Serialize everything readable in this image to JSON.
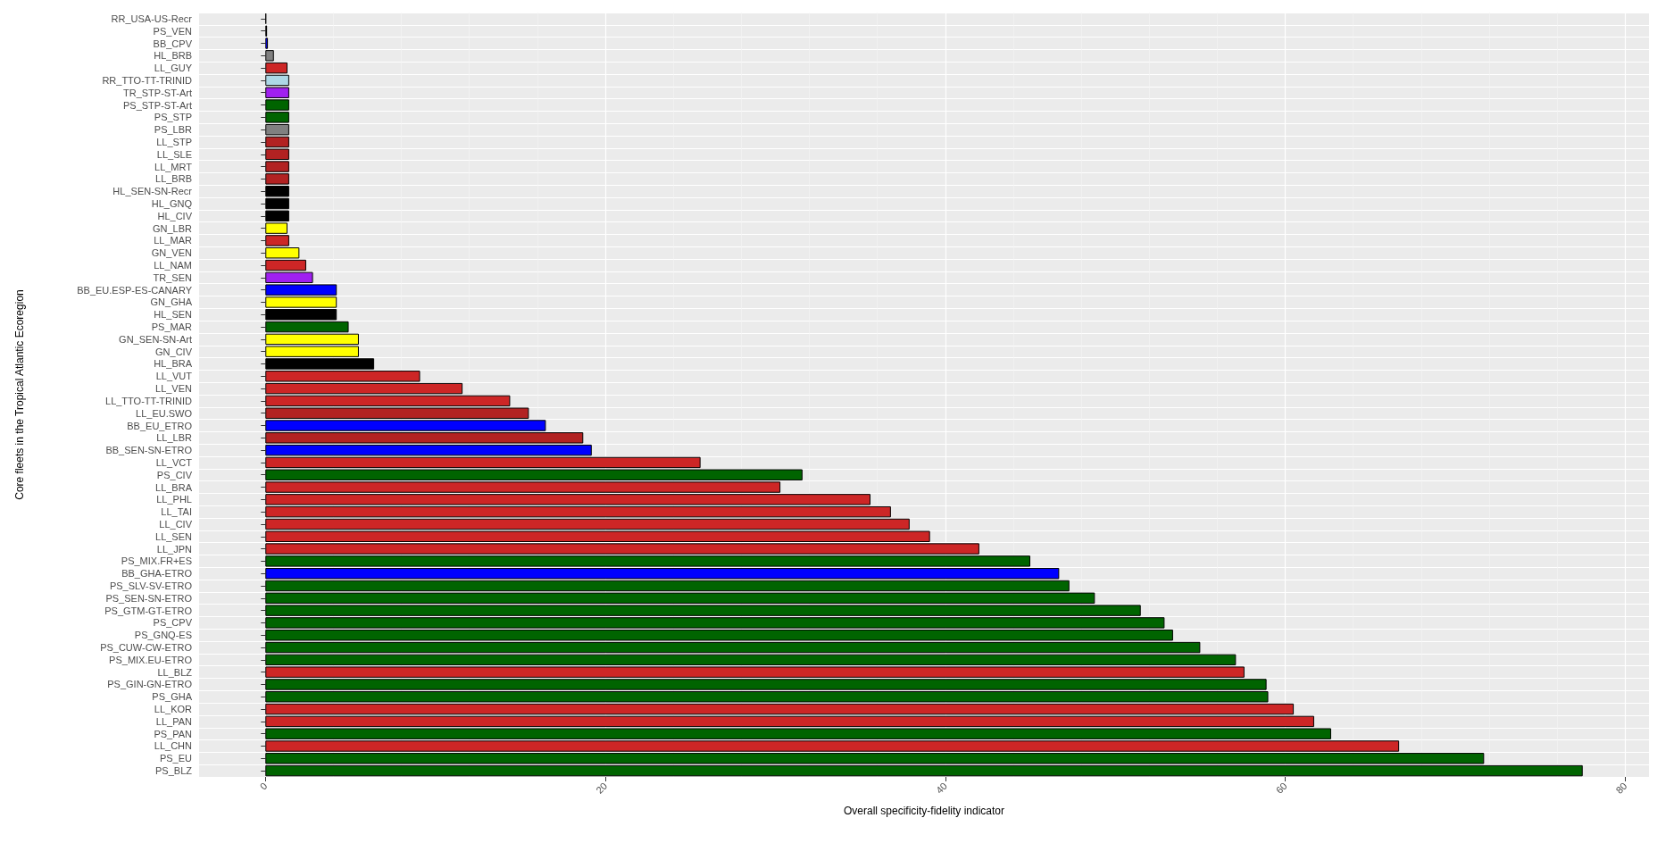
{
  "chart_data": {
    "type": "bar",
    "orientation": "horizontal",
    "xlabel": "Overall specificity-fidelity indicator",
    "ylabel": "Core fleets in the Tropical Atlantic Ecoregion",
    "categories": [
      "RR_USA-US-Recr",
      "PS_VEN",
      "BB_CPV",
      "HL_BRB",
      "LL_GUY",
      "RR_TTO-TT-TRINID",
      "TR_STP-ST-Art",
      "PS_STP-ST-Art",
      "PS_STP",
      "PS_LBR",
      "LL_STP",
      "LL_SLE",
      "LL_MRT",
      "LL_BRB",
      "HL_SEN-SN-Recr",
      "HL_GNQ",
      "HL_CIV",
      "GN_LBR",
      "LL_MAR",
      "GN_VEN",
      "LL_NAM",
      "TR_SEN",
      "BB_EU.ESP-ES-CANARY",
      "GN_GHA",
      "HL_SEN",
      "PS_MAR",
      "GN_SEN-SN-Art",
      "GN_CIV",
      "HL_BRA",
      "LL_VUT",
      "LL_VEN",
      "LL_TTO-TT-TRINID",
      "LL_EU.SWO",
      "BB_EU_ETRO",
      "LL_LBR",
      "BB_SEN-SN-ETRO",
      "LL_VCT",
      "PS_CIV",
      "LL_BRA",
      "LL_PHL",
      "LL_TAI",
      "LL_CIV",
      "LL_SEN",
      "LL_JPN",
      "PS_MIX.FR+ES",
      "BB_GHA-ETRO",
      "PS_SLV-SV-ETRO",
      "PS_SEN-SN-ETRO",
      "PS_GTM-GT-ETRO",
      "PS_CPV",
      "PS_GNQ-ES",
      "PS_CUW-CW-ETRO",
      "PS_MIX.EU-ETRO",
      "LL_BLZ",
      "PS_GIN-GN-ETRO",
      "PS_GHA",
      "LL_KOR",
      "LL_PAN",
      "PS_PAN",
      "LL_CHN",
      "PS_EU",
      "PS_BLZ"
    ],
    "values": [
      0.05,
      0.1,
      0.15,
      0.5,
      1.3,
      1.4,
      1.4,
      1.4,
      1.4,
      1.4,
      1.4,
      1.4,
      1.4,
      1.4,
      1.4,
      1.4,
      1.4,
      1.3,
      1.4,
      2.0,
      2.4,
      2.8,
      4.2,
      4.2,
      4.2,
      4.9,
      5.5,
      5.5,
      6.4,
      9.1,
      11.6,
      14.4,
      15.5,
      16.5,
      18.7,
      19.2,
      25.6,
      31.6,
      30.3,
      35.6,
      36.8,
      37.9,
      39.1,
      42.0,
      45.0,
      46.7,
      47.3,
      48.8,
      51.5,
      52.9,
      53.4,
      55.0,
      57.1,
      57.6,
      58.9,
      59.0,
      60.5,
      61.7,
      62.7,
      66.7,
      71.7,
      77.5
    ],
    "colors": [
      "#000000",
      "#000000",
      "#0000ff",
      "#808080",
      "#cd2626",
      "#add8e6",
      "#a020f0",
      "#006400",
      "#006400",
      "#808080",
      "#b22222",
      "#b22222",
      "#b22222",
      "#b22222",
      "#000000",
      "#000000",
      "#000000",
      "#ffff00",
      "#cd2626",
      "#ffff00",
      "#cd2626",
      "#a020f0",
      "#0000ff",
      "#ffff00",
      "#000000",
      "#006400",
      "#ffff00",
      "#ffff00",
      "#000000",
      "#cd2626",
      "#cd2626",
      "#cd2626",
      "#b22222",
      "#0000ff",
      "#b22222",
      "#0000ff",
      "#cd2626",
      "#006400",
      "#cd2626",
      "#cd2626",
      "#cd2626",
      "#cd2626",
      "#cd2626",
      "#cd2626",
      "#006400",
      "#0000ff",
      "#006400",
      "#006400",
      "#006400",
      "#006400",
      "#006400",
      "#006400",
      "#006400",
      "#cd2626",
      "#006400",
      "#006400",
      "#cd2626",
      "#cd2626",
      "#006400",
      "#cd2626",
      "#006400",
      "#006400"
    ],
    "xlim": [
      -3.9,
      81.4
    ],
    "xticks": [
      0,
      20,
      40,
      60,
      80
    ],
    "grid": true
  }
}
